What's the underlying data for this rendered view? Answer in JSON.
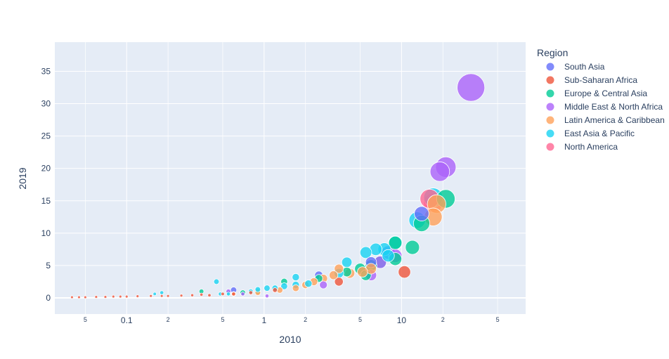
{
  "chart_data": {
    "type": "scatter",
    "subtype": "bubble",
    "xlabel": "2010",
    "ylabel": "2019",
    "x_scale": "log",
    "xlim": [
      0.03,
      80
    ],
    "ylim": [
      -2.5,
      39.5
    ],
    "x_major_ticks": [
      0.1,
      1,
      10
    ],
    "x_major_labels": [
      "0.1",
      "1",
      "10"
    ],
    "x_minor_ticks": [
      0.05,
      0.2,
      0.5,
      2,
      5,
      20,
      50
    ],
    "x_minor_labels": [
      "5",
      "2",
      "5",
      "2",
      "5",
      "2",
      "5"
    ],
    "y_ticks": [
      0,
      5,
      10,
      15,
      20,
      25,
      30,
      35
    ],
    "y_tick_labels": [
      "0",
      "5",
      "10",
      "15",
      "20",
      "25",
      "30",
      "35"
    ],
    "grid": true,
    "legend": {
      "title": "Region",
      "placement": "right"
    },
    "series": [
      {
        "name": "South Asia",
        "color": "#636efa",
        "points": [
          [
            0.6,
            1.2,
            0.5
          ],
          [
            2.5,
            3.5,
            0.9
          ],
          [
            8,
            7,
            2.4
          ],
          [
            14,
            13,
            2.8
          ],
          [
            6,
            5.5,
            1.6
          ]
        ]
      },
      {
        "name": "Sub-Saharan Africa",
        "color": "#ef553b",
        "points": [
          [
            0.04,
            0.1,
            0.05
          ],
          [
            0.045,
            0.1,
            0.05
          ],
          [
            0.05,
            0.1,
            0.05
          ],
          [
            0.06,
            0.15,
            0.06
          ],
          [
            0.07,
            0.15,
            0.06
          ],
          [
            0.08,
            0.2,
            0.07
          ],
          [
            0.09,
            0.2,
            0.07
          ],
          [
            0.1,
            0.2,
            0.08
          ],
          [
            0.12,
            0.25,
            0.08
          ],
          [
            0.15,
            0.3,
            0.09
          ],
          [
            0.18,
            0.3,
            0.1
          ],
          [
            0.2,
            0.3,
            0.1
          ],
          [
            0.25,
            0.35,
            0.11
          ],
          [
            0.3,
            0.4,
            0.12
          ],
          [
            0.35,
            0.5,
            0.13
          ],
          [
            0.4,
            0.4,
            0.14
          ],
          [
            0.5,
            0.6,
            0.15
          ],
          [
            0.6,
            0.6,
            0.2
          ],
          [
            0.8,
            0.8,
            0.2
          ],
          [
            1.2,
            1.2,
            0.3
          ],
          [
            3.5,
            2.5,
            1.0
          ],
          [
            10.5,
            4,
            2.0
          ]
        ]
      },
      {
        "name": "Europe & Central Asia",
        "color": "#00cc96",
        "points": [
          [
            0.35,
            1.0,
            0.3
          ],
          [
            0.55,
            0.8,
            0.3
          ],
          [
            0.7,
            0.8,
            0.4
          ],
          [
            0.9,
            1.0,
            0.4
          ],
          [
            1.4,
            2.5,
            0.6
          ],
          [
            2.5,
            3.0,
            0.8
          ],
          [
            4,
            4.0,
            1.2
          ],
          [
            5,
            4.5,
            1.6
          ],
          [
            6,
            5.0,
            1.8
          ],
          [
            7,
            5.5,
            2.0
          ],
          [
            9,
            6.0,
            2.2
          ],
          [
            12,
            7.8,
            2.6
          ],
          [
            14,
            11.5,
            3.5
          ],
          [
            21,
            15.3,
            4.5
          ],
          [
            5.5,
            3.5,
            1.5
          ],
          [
            9,
            8.5,
            2.3
          ]
        ]
      },
      {
        "name": "Middle East & North Africa",
        "color": "#ab63fa",
        "points": [
          [
            0.55,
            1.0,
            0.3
          ],
          [
            0.7,
            0.6,
            0.2
          ],
          [
            1.05,
            0.3,
            0.2
          ],
          [
            2.7,
            2.0,
            0.8
          ],
          [
            6,
            3.5,
            1.6
          ],
          [
            7,
            5.5,
            2.0
          ],
          [
            9,
            6.5,
            2.4
          ],
          [
            19,
            19.5,
            5.0
          ],
          [
            21,
            20.2,
            5.5
          ],
          [
            32,
            32.5,
            10.0
          ]
        ]
      },
      {
        "name": "Latin America & Caribbean",
        "color": "#ffa15a",
        "points": [
          [
            0.6,
            0.6,
            0.3
          ],
          [
            0.9,
            0.8,
            0.4
          ],
          [
            1.3,
            1.2,
            0.5
          ],
          [
            1.7,
            1.5,
            0.6
          ],
          [
            2,
            2.0,
            0.7
          ],
          [
            2.3,
            2.5,
            0.8
          ],
          [
            2.7,
            3.0,
            0.9
          ],
          [
            3.2,
            3.5,
            1.0
          ],
          [
            3.5,
            4.5,
            1.1
          ],
          [
            4.2,
            3.8,
            1.3
          ],
          [
            5.2,
            4.0,
            1.4
          ],
          [
            6,
            4.5,
            1.5
          ],
          [
            17,
            12.5,
            4.2
          ],
          [
            18,
            14.5,
            4.5
          ]
        ]
      },
      {
        "name": "East Asia & Pacific",
        "color": "#19d3f3",
        "points": [
          [
            0.16,
            0.6,
            0.15
          ],
          [
            0.18,
            0.8,
            0.2
          ],
          [
            0.45,
            2.5,
            0.4
          ],
          [
            0.48,
            0.6,
            0.2
          ],
          [
            0.55,
            0.6,
            0.2
          ],
          [
            0.8,
            1.0,
            0.3
          ],
          [
            0.9,
            1.3,
            0.4
          ],
          [
            1.05,
            1.5,
            0.5
          ],
          [
            1.2,
            1.5,
            0.5
          ],
          [
            1.4,
            1.8,
            0.6
          ],
          [
            1.7,
            3.2,
            0.7
          ],
          [
            1.7,
            2.0,
            0.7
          ],
          [
            2.1,
            2.2,
            0.7
          ],
          [
            3.5,
            3.8,
            1.2
          ],
          [
            4,
            5.5,
            1.4
          ],
          [
            5.5,
            7.0,
            1.8
          ],
          [
            6.5,
            7.5,
            2.0
          ],
          [
            7.5,
            7.5,
            2.2
          ],
          [
            9,
            8.5,
            2.6
          ],
          [
            13,
            12.0,
            3.6
          ],
          [
            17,
            15.5,
            4.8
          ],
          [
            8,
            6.5,
            2.0
          ]
        ]
      },
      {
        "name": "North America",
        "color": "#ff6692",
        "points": [
          [
            16,
            15.3,
            4.8
          ],
          [
            17,
            14.7,
            5.0
          ]
        ]
      }
    ]
  }
}
